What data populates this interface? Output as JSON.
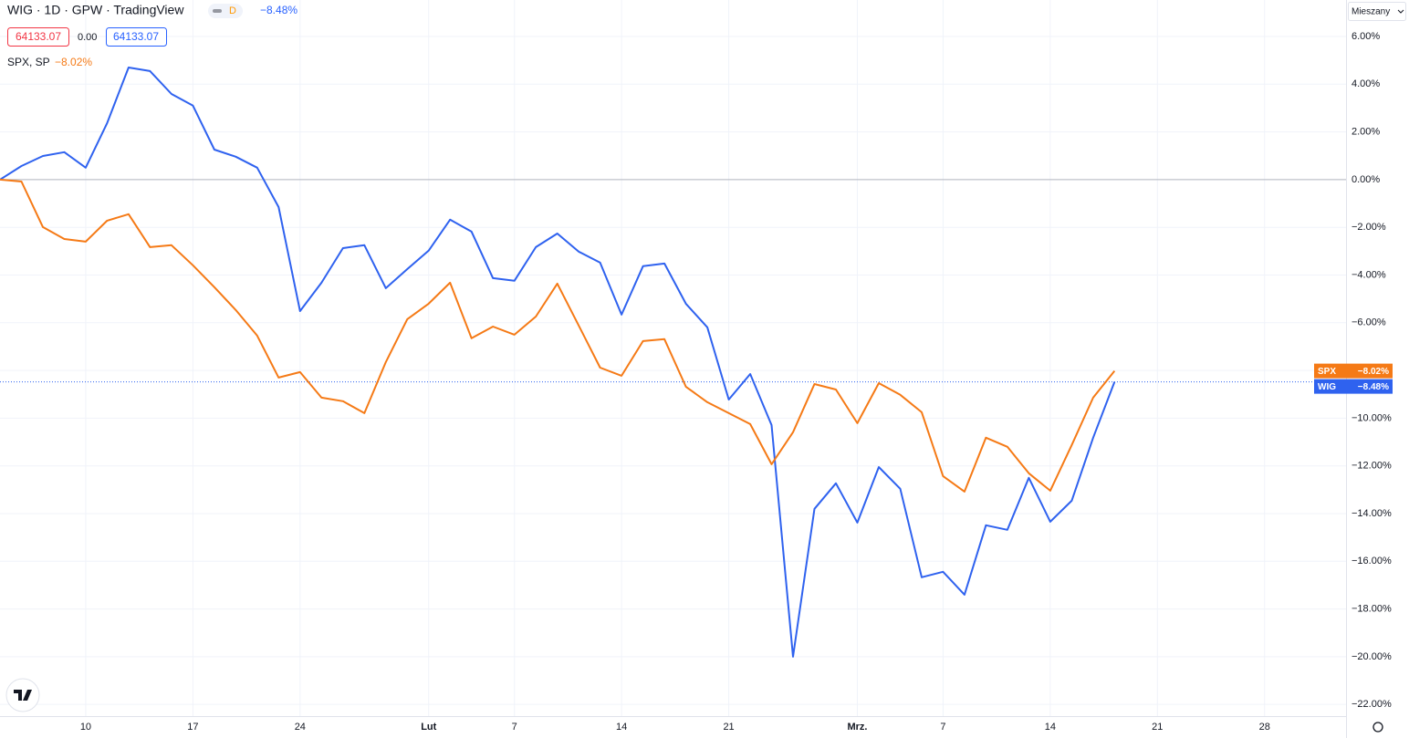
{
  "header": {
    "title": "WIG · 1D · GPW · TradingView",
    "interval_badge": "D",
    "bid": "64133.07",
    "spread": "0.00",
    "ask": "64133.07"
  },
  "scale_mode": "Mieszany",
  "chart_data": {
    "type": "line",
    "x": [
      0,
      1,
      2,
      3,
      4,
      5,
      6,
      7,
      8,
      9,
      10,
      11,
      12,
      13,
      14,
      15,
      16,
      17,
      18,
      19,
      20,
      21,
      22,
      23,
      24,
      25,
      26,
      27,
      28,
      29,
      30,
      31,
      32,
      33,
      34,
      35,
      36,
      37,
      38,
      39,
      40,
      41,
      42,
      43,
      44,
      45,
      46,
      47,
      48,
      49,
      50,
      51,
      52
    ],
    "xlim": [
      0,
      62.8
    ],
    "xticks": [
      {
        "value": 4,
        "label": "10"
      },
      {
        "value": 9,
        "label": "17"
      },
      {
        "value": 14,
        "label": "24"
      },
      {
        "value": 20,
        "label": "Lut"
      },
      {
        "value": 24,
        "label": "7"
      },
      {
        "value": 29,
        "label": "14"
      },
      {
        "value": 34,
        "label": "21"
      },
      {
        "value": 40,
        "label": "Mrz."
      },
      {
        "value": 44,
        "label": "7"
      },
      {
        "value": 49,
        "label": "14"
      },
      {
        "value": 54,
        "label": "21"
      },
      {
        "value": 59,
        "label": "28"
      }
    ],
    "ylim": [
      -22.49,
      7.53
    ],
    "yticks": [
      {
        "value": 6,
        "label": "6.00%"
      },
      {
        "value": 4,
        "label": "4.00%"
      },
      {
        "value": 2,
        "label": "2.00%"
      },
      {
        "value": 0,
        "label": "0.00%"
      },
      {
        "value": -2,
        "label": "−2.00%"
      },
      {
        "value": -4,
        "label": "−4.00%"
      },
      {
        "value": -6,
        "label": "−6.00%"
      },
      {
        "value": -8,
        "label": "−8.00%"
      },
      {
        "value": -10,
        "label": "−10.00%"
      },
      {
        "value": -12,
        "label": "−12.00%"
      },
      {
        "value": -14,
        "label": "−14.00%"
      },
      {
        "value": -16,
        "label": "−16.00%"
      },
      {
        "value": -18,
        "label": "−18.00%"
      },
      {
        "value": -20,
        "label": "−20.00%"
      },
      {
        "value": -22,
        "label": "−22.00%"
      }
    ],
    "grid": true,
    "series": [
      {
        "name": "WIG",
        "color": "#2f62ef",
        "last_label": "−8.48%",
        "values": [
          0,
          0.57,
          0.99,
          1.15,
          0.5,
          2.37,
          4.7,
          4.55,
          3.59,
          3.1,
          1.26,
          0.96,
          0.5,
          -1.15,
          -5.51,
          -4.32,
          -2.87,
          -2.75,
          -4.55,
          -3.75,
          -2.98,
          -1.68,
          -2.18,
          -4.13,
          -4.24,
          -2.83,
          -2.26,
          -3.02,
          -3.48,
          -5.66,
          -3.63,
          -3.52,
          -5.2,
          -6.19,
          -9.22,
          -8.15,
          -10.29,
          -20,
          -13.8,
          -12.73,
          -14.38,
          -12.05,
          -12.96,
          -16.67,
          -16.44,
          -17.4,
          -14.49,
          -14.68,
          -12.5,
          -14.34,
          -13.46,
          -10.82,
          -8.48
        ]
      },
      {
        "name": "SPX",
        "legend_title": "SPX, SP",
        "color": "#f57a16",
        "last_label": "−8.02%",
        "values": [
          0,
          -0.08,
          -1.99,
          -2.49,
          -2.6,
          -1.72,
          -1.45,
          -2.83,
          -2.75,
          -3.59,
          -4.51,
          -5.47,
          -6.54,
          -8.3,
          -8.07,
          -9.14,
          -9.29,
          -9.79,
          -7.65,
          -5.85,
          -5.2,
          -4.32,
          -6.65,
          -6.16,
          -6.5,
          -5.74,
          -4.36,
          -6.12,
          -7.88,
          -8.22,
          -6.77,
          -6.69,
          -8.68,
          -9.33,
          -9.79,
          -10.25,
          -11.93,
          -10.59,
          -8.57,
          -8.8,
          -10.21,
          -8.53,
          -9.02,
          -9.75,
          -12.43,
          -13.08,
          -10.82,
          -11.2,
          -12.31,
          -13.04,
          -11.13,
          -9.14,
          -8.02
        ]
      }
    ]
  }
}
